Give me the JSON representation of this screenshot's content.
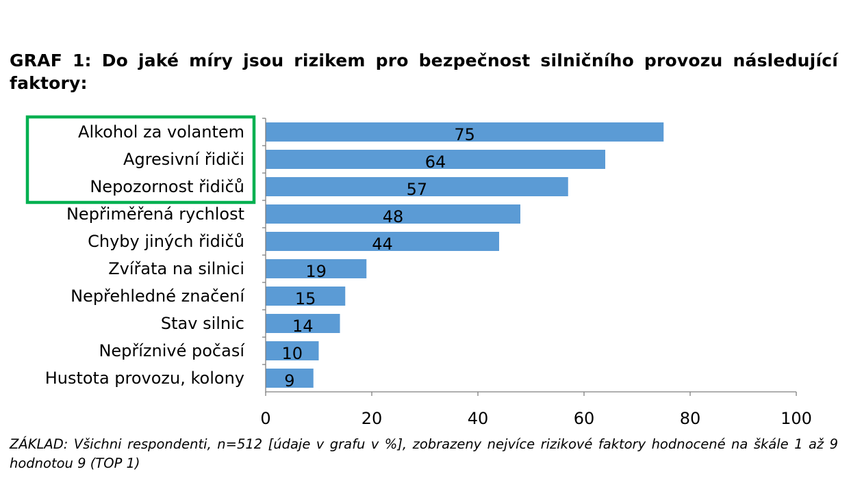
{
  "title": "GRAF 1: Do jaké míry jsou rizikem pro bezpečnost silničního provozu následující faktory:",
  "footnote": "ZÁKLAD: Všichni respondenti, n=512 [údaje v grafu v %], zobrazeny nejvíce rizikové faktory hodnocené na škále 1 až 9 hodnotou 9 (TOP 1)",
  "colors": {
    "bar": "#5b9bd5",
    "highlight_box": "#00b050",
    "axis": "#7f7f7f"
  },
  "chart_data": {
    "type": "bar",
    "orientation": "horizontal",
    "title": "GRAF 1: Do jaké míry jsou rizikem pro bezpečnost silničního provozu následující faktory:",
    "categories": [
      "Alkohol za volantem",
      "Agresivní řidiči",
      "Nepozornost řidičů",
      "Nepřiměřená rychlost",
      "Chyby jiných řidičů",
      "Zvířata na silnici",
      "Nepřehledné značení",
      "Stav silnic",
      "Nepříznivé počasí",
      "Hustota provozu, kolony"
    ],
    "values": [
      75,
      64,
      57,
      48,
      44,
      19,
      15,
      14,
      10,
      9
    ],
    "data_labels": [
      "75",
      "64",
      "57",
      "48",
      "44",
      "19",
      "15",
      "14",
      "10",
      "9"
    ],
    "xlim": [
      0,
      100
    ],
    "xticks": [
      0,
      20,
      40,
      60,
      80,
      100
    ],
    "xtick_labels": [
      "0",
      "20",
      "40",
      "60",
      "80",
      "100"
    ],
    "grid": false,
    "legend": "none",
    "highlighted_categories": [
      "Alkohol za volantem",
      "Agresivní řidiči",
      "Nepozornost řidičů"
    ]
  }
}
